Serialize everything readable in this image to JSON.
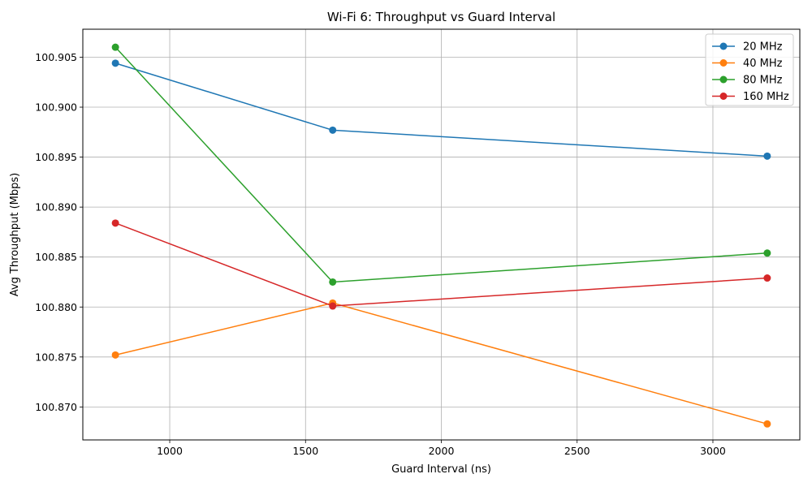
{
  "chart_data": {
    "type": "line",
    "title": "Wi-Fi 6: Throughput vs Guard Interval",
    "xlabel": "Guard Interval (ns)",
    "ylabel": "Avg Throughput (Mbps)",
    "x": [
      800,
      1600,
      3200
    ],
    "xlim": [
      680,
      3320
    ],
    "ylim": [
      100.8667,
      100.9078
    ],
    "xticks": [
      1000,
      1500,
      2000,
      2500,
      3000
    ],
    "xtick_labels": [
      "1000",
      "1500",
      "2000",
      "2500",
      "3000"
    ],
    "yticks": [
      100.87,
      100.875,
      100.88,
      100.885,
      100.89,
      100.895,
      100.9,
      100.905
    ],
    "ytick_labels": [
      "100.870",
      "100.875",
      "100.880",
      "100.885",
      "100.890",
      "100.895",
      "100.900",
      "100.905"
    ],
    "grid": true,
    "legend_position": "top-right",
    "series": [
      {
        "name": "20 MHz",
        "color": "#1f77b4",
        "values": [
          100.9044,
          100.8977,
          100.8951
        ]
      },
      {
        "name": "40 MHz",
        "color": "#ff7f0e",
        "values": [
          100.8752,
          100.8804,
          100.8683
        ]
      },
      {
        "name": "80 MHz",
        "color": "#2ca02c",
        "values": [
          100.906,
          100.8825,
          100.8854
        ]
      },
      {
        "name": "160 MHz",
        "color": "#d62728",
        "values": [
          100.8884,
          100.8801,
          100.8829
        ]
      }
    ]
  }
}
